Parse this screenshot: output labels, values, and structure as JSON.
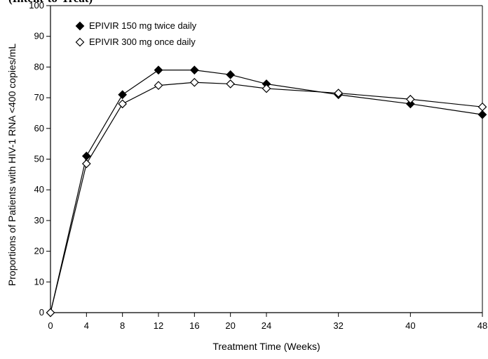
{
  "header_fragment": "(Intent-to-Treat)",
  "chart_data": {
    "type": "line",
    "title": "",
    "xlabel": "Treatment Time (Weeks)",
    "ylabel": "Proportions of Patients with HIV-1 RNA <400 copies/mL",
    "x": [
      0,
      4,
      8,
      12,
      16,
      20,
      24,
      32,
      40,
      48
    ],
    "xlim": [
      0,
      48
    ],
    "ylim": [
      0,
      100
    ],
    "xticks": [
      "0",
      "4",
      "8",
      "12",
      "16",
      "20",
      "24",
      "32",
      "40",
      "48"
    ],
    "yticks": [
      "0",
      "10",
      "20",
      "30",
      "40",
      "50",
      "60",
      "70",
      "80",
      "90",
      "100"
    ],
    "grid": false,
    "legend_position": "top-left",
    "series": [
      {
        "name": "EPIVIR 150 mg twice daily",
        "marker": "filled-diamond",
        "color": "#000000",
        "values": [
          0,
          51,
          71,
          79,
          79,
          77.5,
          74.5,
          71,
          68,
          64.5
        ]
      },
      {
        "name": "EPIVIR 300 mg once daily",
        "marker": "open-diamond",
        "color": "#000000",
        "values": [
          0,
          48.5,
          68,
          74,
          75,
          74.5,
          73,
          71.5,
          69.5,
          67
        ]
      }
    ]
  }
}
